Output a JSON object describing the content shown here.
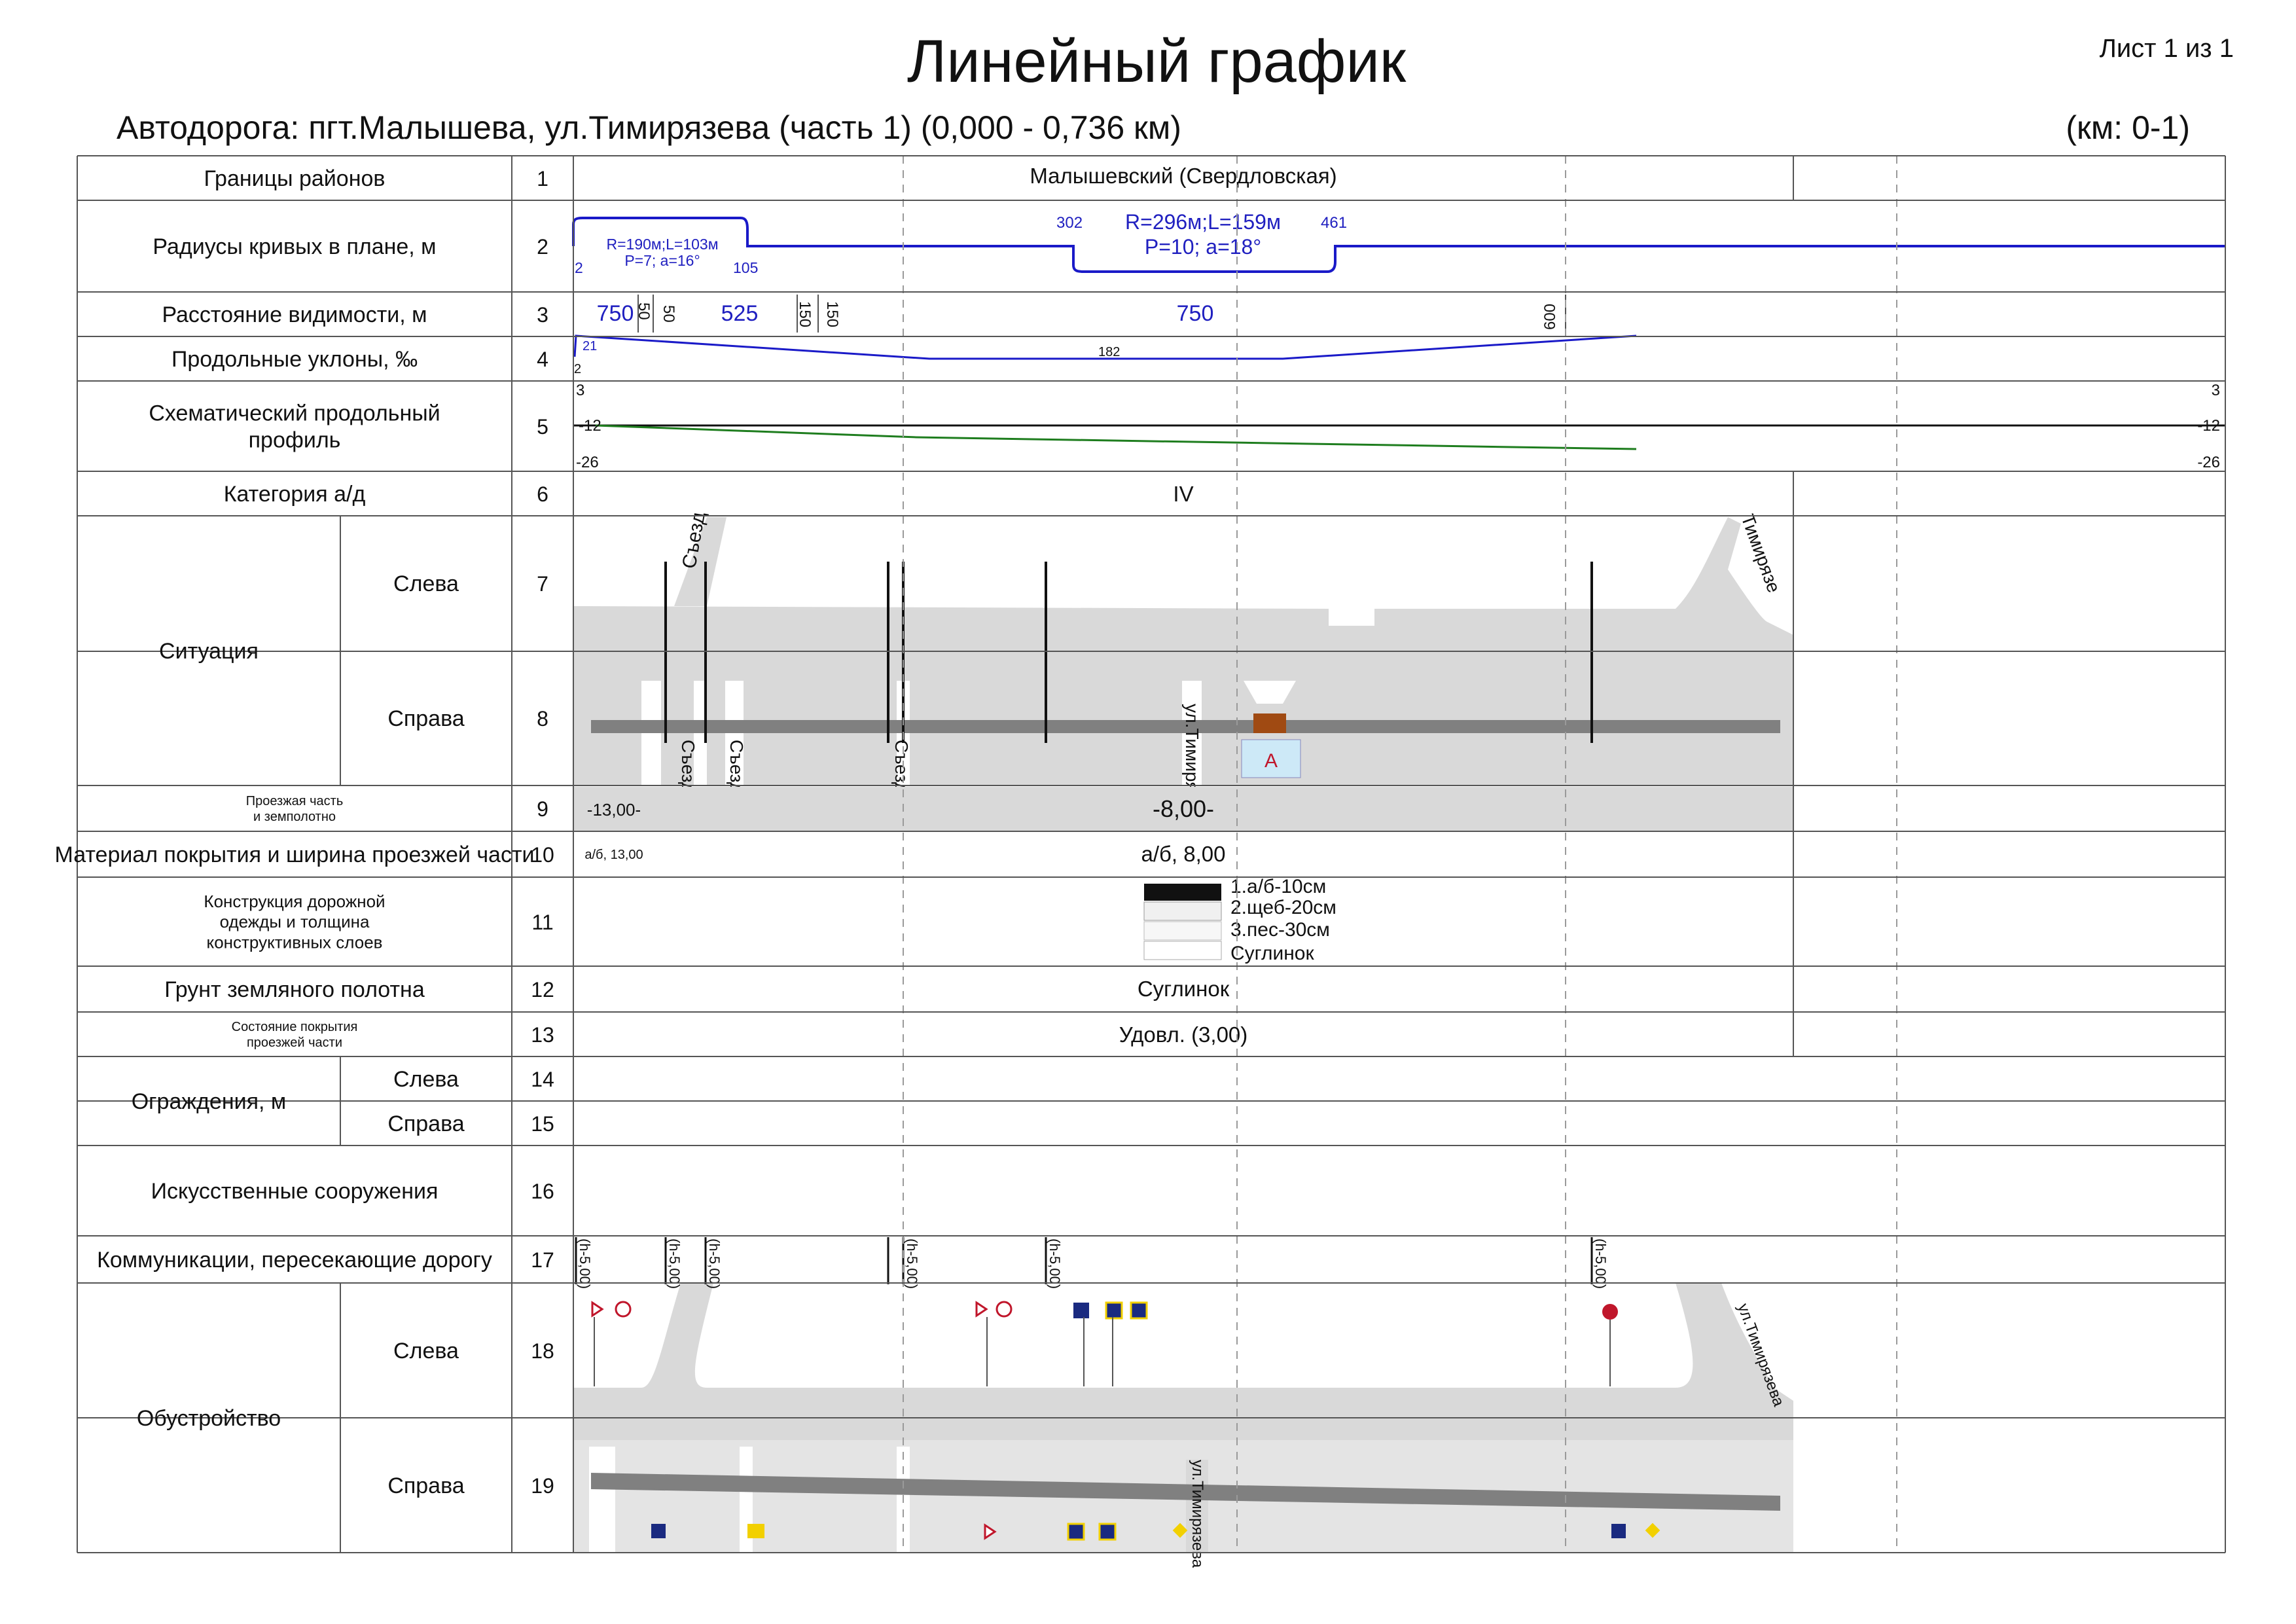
{
  "header": {
    "title": "Линейный график",
    "sheet": "Лист 1 из 1",
    "road": "Автодорога: пгт.Малышева, ул.Тимирязева (часть 1) (0,000 - 0,736 км)",
    "km_range": "(км: 0-1)"
  },
  "rows": [
    {
      "label": "Границы районов",
      "num": "1"
    },
    {
      "label": "Радиусы кривых в плане, м",
      "num": "2"
    },
    {
      "label": "Расстояние видимости, м",
      "num": "3"
    },
    {
      "label": "Продольные уклоны, ‰",
      "num": "4"
    },
    {
      "label": "Схематический продольный",
      "label2": "профиль",
      "num": "5"
    },
    {
      "label": "Категория а/д",
      "num": "6"
    },
    {
      "label": "Ситуация",
      "sub1": "Слева",
      "num1": "7",
      "sub2": "Справа",
      "num2": "8"
    },
    {
      "label": "Проезжая часть",
      "label2": "и земполотно",
      "num": "9"
    },
    {
      "label": "Материал покрытия и ширина проезжей части",
      "num": "10"
    },
    {
      "label": "Конструкция дорожной",
      "label2": "одежды и толщина",
      "label3": "конструктивных слоев",
      "num": "11"
    },
    {
      "label": "Грунт земляного полотна",
      "num": "12"
    },
    {
      "label": "Состояние покрытия",
      "label2": "проезжей части",
      "num": "13"
    },
    {
      "label": "Ограждения, м",
      "sub1": "Слева",
      "num1": "14",
      "sub2": "Справа",
      "num2": "15"
    },
    {
      "label": "Искусственные сооружения",
      "num": "16"
    },
    {
      "label": "Коммуникации, пересекающие дорогу",
      "num": "17"
    },
    {
      "label": "Обустройство",
      "sub1": "Слева",
      "num1": "18",
      "sub2": "Справа",
      "num2": "19"
    }
  ],
  "content": {
    "district": "Малышевский (Свердловская)",
    "curve1": {
      "label1": "R=190м;L=103м",
      "label2": "Р=7; a=16°",
      "start": "2",
      "end": "105"
    },
    "curve2": {
      "label1": "R=296м;L=159м",
      "label2": "Р=10; a=18°",
      "start": "302",
      "end": "461"
    },
    "visibility": {
      "v1": "750",
      "v2": "50",
      "v3": "50",
      "v4": "525",
      "v5": "150",
      "v6": "150",
      "v7": "750",
      "v8": "600"
    },
    "grades": {
      "g1": "21",
      "g2": "182",
      "g0": "2"
    },
    "profile": {
      "top": "3",
      "mid": "-12",
      "bottom": "-26",
      "top_r": "3",
      "mid_r": "-12",
      "bottom_r": "-26"
    },
    "category": "IV",
    "situation": {
      "left_road": "Съезд",
      "right_road1": "Съезд",
      "right_road2": "Съезд",
      "right_road3": "Съезд",
      "street": "ул.Тимиря",
      "street2": "Тимирязе"
    },
    "carriageway": {
      "first": "-13,00-",
      "main": "-8,00-"
    },
    "material": {
      "first": "а/б, 13,00",
      "main": "а/б, 8,00"
    },
    "layers": [
      "1.а/б-10см",
      "2.щеб-20см",
      "3.пес-30см",
      "Суглинок"
    ],
    "soil": "Суглинок",
    "condition": "Удовл. (3,00)",
    "comm_label": "(h-5,00)",
    "facility_street1": "ул.Тимирязева",
    "facility_street2": "ул.Тимирязева"
  },
  "colors": {
    "grid": "#555555",
    "dash": "#9a9a9a",
    "blue": "#1a1ac8",
    "green": "#1e7d1e",
    "road": "#d9d9d9",
    "lane": "#808080",
    "bus": "#a04a12"
  }
}
